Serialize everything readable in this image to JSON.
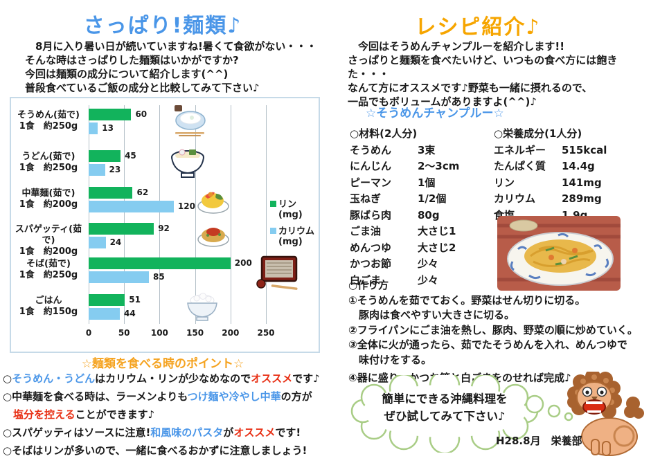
{
  "left": {
    "title": "さっぱり!麺類♪",
    "intro_lines": [
      "　8月に入り暑い日が続いていますね!暑くて食欲がない・・・",
      "そんな時はさっぱりした麺類はいかがですか?",
      "今回は麺類の成分について紹介します(^^)",
      "普段食べているご飯の成分と比較してみて下さい♪"
    ]
  },
  "chart_data": {
    "type": "bar",
    "orientation": "horizontal",
    "title": "",
    "xlabel": "",
    "ylabel": "",
    "xlim": [
      0,
      250
    ],
    "x_ticks": [
      0,
      50,
      100,
      150,
      200,
      250
    ],
    "grid": true,
    "legend_position": "right",
    "categories": [
      {
        "name": "そうめん(茹で)",
        "serving": "1食　約250g"
      },
      {
        "name": "うどん(茹で)",
        "serving": "1食　約250g"
      },
      {
        "name": "中華麺(茹で)",
        "serving": "1食　約200g"
      },
      {
        "name": "スパゲッティ(茹で)",
        "serving": "1食　約200g"
      },
      {
        "name": "そば(茹で)",
        "serving": "1食　約250g"
      },
      {
        "name": "ごはん",
        "serving": "1食　約150g"
      }
    ],
    "series": [
      {
        "name": "リン",
        "unit": "(mg)",
        "color": "#12b35c",
        "values": [
          60,
          45,
          62,
          92,
          200,
          51
        ]
      },
      {
        "name": "カリウム",
        "unit": "(mg)",
        "color": "#85ccf0",
        "values": [
          13,
          23,
          120,
          24,
          85,
          44
        ]
      }
    ]
  },
  "points": {
    "heading": "☆麺類を食べる時のポイント☆",
    "bullets": [
      [
        {
          "t": "○",
          "c": "k"
        },
        {
          "t": "そうめん・うどん",
          "c": "b"
        },
        {
          "t": "はカリウム・リンが少なめなので",
          "c": "k"
        },
        {
          "t": "オススメ",
          "c": "r"
        },
        {
          "t": "です♪",
          "c": "k"
        }
      ],
      [
        {
          "t": "○中華麺を食べる時は、ラーメンよりも",
          "c": "k"
        },
        {
          "t": "つけ麺や冷やし中華",
          "c": "b"
        },
        {
          "t": "の方が",
          "c": "k"
        }
      ],
      [
        {
          "t": "　",
          "c": "k"
        },
        {
          "t": "塩分を控える",
          "c": "r"
        },
        {
          "t": "ことができます♪",
          "c": "k"
        }
      ],
      [
        {
          "t": "○スパゲッティはソースに注意!",
          "c": "k"
        },
        {
          "t": "和風味のパスタ",
          "c": "b"
        },
        {
          "t": "が",
          "c": "k"
        },
        {
          "t": "オススメ",
          "c": "r"
        },
        {
          "t": "です!",
          "c": "k"
        }
      ],
      [
        {
          "t": "○そばはリンが多いので、一緒に食べるおかずに注意しましょう!",
          "c": "k"
        }
      ]
    ]
  },
  "right": {
    "title": "レシピ紹介♪",
    "intro_lines": [
      "　今回はそうめんチャンプルーを紹介します!!",
      "さっぱりと麺類を食べたいけど、いつもの食べ方には飽きた・・・",
      "なんて方にオススメです♪野菜も一緒に摂れるので、",
      "一品でもボリュームがありますよ(^^)♪"
    ],
    "recipe_heading": "☆そうめんチャンプルー☆",
    "ingredients": {
      "heading": "○材料(2人分)",
      "rows": [
        [
          "そうめん",
          "3束"
        ],
        [
          "にんじん",
          "2〜3cm"
        ],
        [
          "ピーマン",
          "1個"
        ],
        [
          "玉ねぎ",
          "1/2個"
        ],
        [
          "豚ばら肉",
          "80g"
        ],
        [
          "ごま油",
          "大さじ1"
        ],
        [
          "めんつゆ",
          "大さじ2"
        ],
        [
          "かつお節",
          "少々"
        ],
        [
          "白ごま",
          "少々"
        ]
      ]
    },
    "nutrition": {
      "heading": "○栄養成分(1人分)",
      "rows": [
        [
          "エネルギー",
          "515kcal"
        ],
        [
          "たんぱく質",
          "14.4g"
        ],
        [
          "リン",
          "141mg"
        ],
        [
          "カリウム",
          "289mg"
        ],
        [
          "食塩",
          "1.9g"
        ]
      ]
    },
    "method": {
      "heading": "○作り方",
      "steps": [
        "①そうめんを茹でておく。野菜はせん切りに切る。",
        "　豚肉は食べやすい大きさに切る。",
        "②フライパンにごま油を熱し、豚肉、野菜の順に炒めていく。",
        "③全体に火が通ったら、茹でたそうめんを入れ、めんつゆで",
        "　味付けをする。",
        "④器に盛り、かつお節と白ごまをのせれば完成♪"
      ]
    },
    "bubble_lines": [
      "簡単にできる沖縄料理を",
      "ぜひ試してみて下さい♪"
    ],
    "footer": "H28.8月　栄養部"
  },
  "colors": {
    "title_blue": "#4a96e8",
    "title_orange": "#f6a500",
    "points_orange": "#f5a320",
    "accent_red": "#e83015",
    "bar_green": "#12b35c",
    "bar_blue": "#85ccf0",
    "bubble_green": "#a9cd86"
  }
}
